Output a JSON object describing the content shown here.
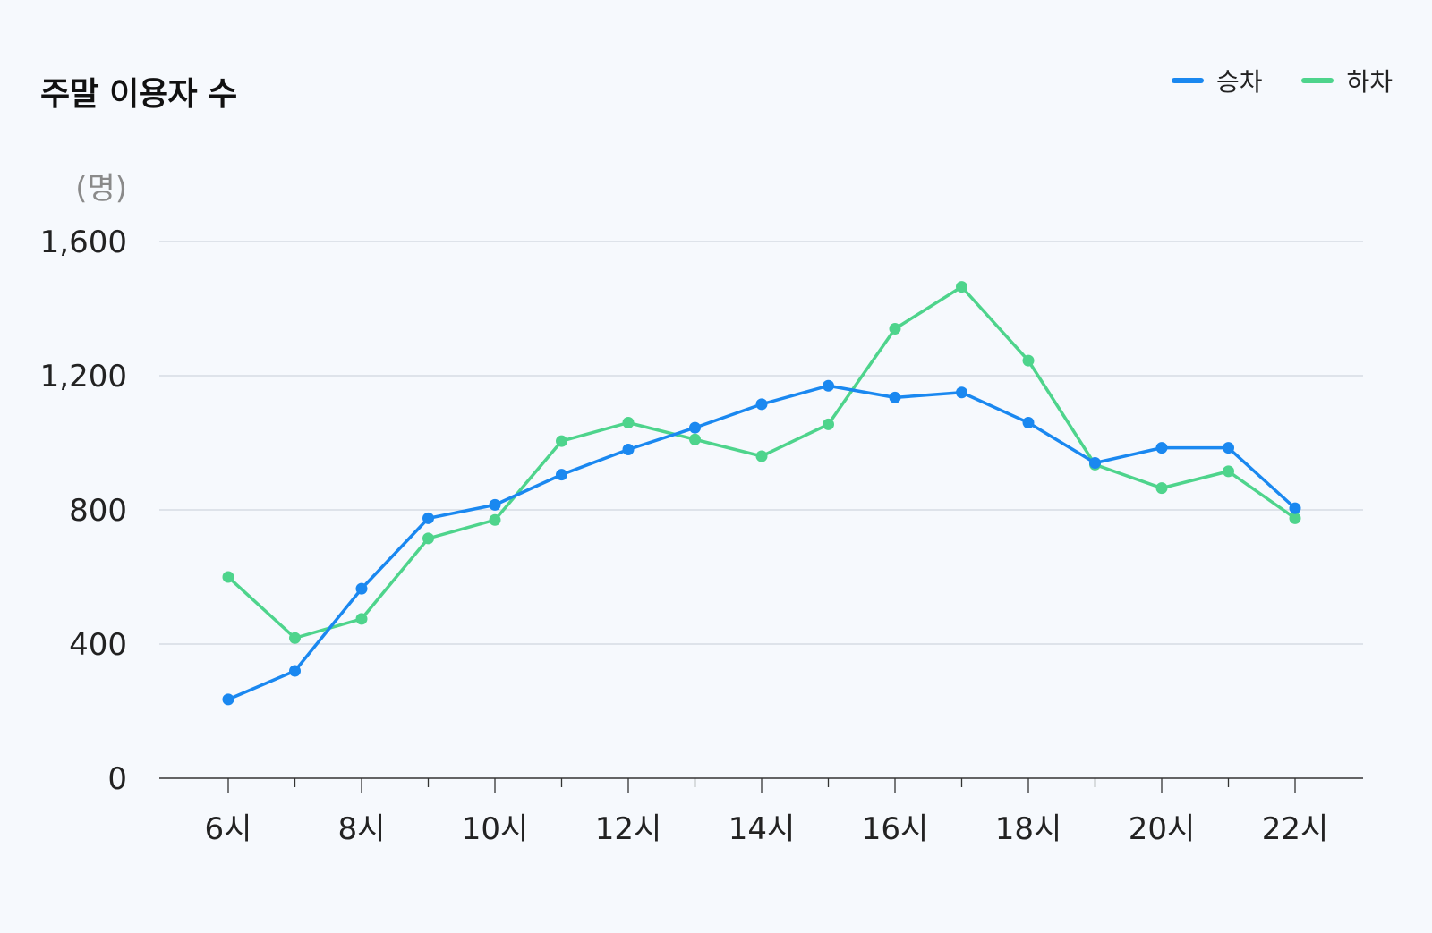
{
  "header": {
    "title": "주말 이용자 수"
  },
  "legend": [
    {
      "label": "승차",
      "color": "#1a88f0"
    },
    {
      "label": "하차",
      "color": "#4ed48c"
    }
  ],
  "chart_data": {
    "type": "line",
    "title": "주말 이용자 수",
    "ylabel": "(명)",
    "xlabel": "",
    "ylim": [
      0,
      1600
    ],
    "yticks": [
      0,
      400,
      800,
      1200,
      1600
    ],
    "ytick_labels": [
      "0",
      "400",
      "800",
      "1,200",
      "1,600"
    ],
    "x": [
      6,
      7,
      8,
      9,
      10,
      11,
      12,
      13,
      14,
      15,
      16,
      17,
      18,
      19,
      20,
      21,
      22
    ],
    "xtick_labels": [
      "6시",
      "",
      "8시",
      "",
      "10시",
      "",
      "12시",
      "",
      "14시",
      "",
      "16시",
      "",
      "18시",
      "",
      "20시",
      "",
      "22시"
    ],
    "grid": true,
    "legend_position": "top-right",
    "series": [
      {
        "name": "승차",
        "color": "#1a88f0",
        "values": [
          235,
          320,
          565,
          775,
          815,
          905,
          980,
          1045,
          1115,
          1170,
          1135,
          1150,
          1060,
          940,
          985,
          985,
          805
        ]
      },
      {
        "name": "하차",
        "color": "#4ed48c",
        "values": [
          600,
          418,
          475,
          715,
          770,
          1005,
          1060,
          1010,
          960,
          1055,
          1340,
          1465,
          1245,
          935,
          865,
          915,
          775
        ]
      }
    ]
  }
}
